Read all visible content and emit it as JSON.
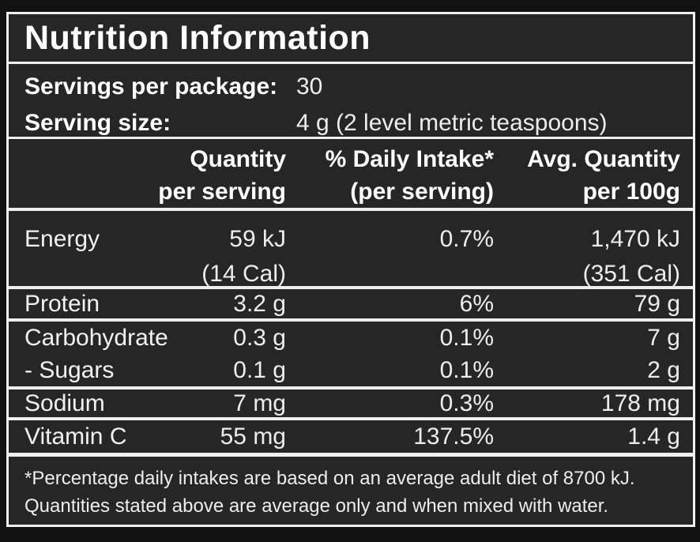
{
  "label": {
    "title": "Nutrition Information",
    "serving_info": {
      "servings_per_package_label": "Servings per package:",
      "servings_per_package_value": "30",
      "serving_size_label": "Serving size:",
      "serving_size_value": "4 g (2 level metric teaspoons)"
    },
    "columns": {
      "quantity_line1": "Quantity",
      "quantity_line2": "per serving",
      "daily_intake_line1": "% Daily Intake*",
      "daily_intake_line2": "(per serving)",
      "avg_line1": "Avg. Quantity",
      "avg_line2": "per 100g"
    },
    "rows": [
      {
        "name": "Energy",
        "qty": "59 kJ",
        "qty_alt": "(14 Cal)",
        "daily_intake": "0.7%",
        "avg": "1,470 kJ",
        "avg_alt": "(351 Cal)"
      },
      {
        "name": "Protein",
        "qty": "3.2 g",
        "daily_intake": "6%",
        "avg": "79 g"
      },
      {
        "name": "Carbohydrate",
        "qty": "0.3 g",
        "daily_intake": "0.1%",
        "avg": "7 g"
      },
      {
        "name": "- Sugars",
        "qty": "0.1 g",
        "daily_intake": "0.1%",
        "avg": "2 g"
      },
      {
        "name": "Sodium",
        "qty": "7 mg",
        "daily_intake": "0.3%",
        "avg": "178 mg"
      },
      {
        "name": "Vitamin C",
        "qty": "55 mg",
        "daily_intake": "137.5%",
        "avg": "1.4 g"
      }
    ],
    "footnote_line1": "*Percentage daily intakes are based on an average adult diet of 8700 kJ.",
    "footnote_line2": "Quantities stated above are average only and when mixed with water.",
    "colors": {
      "page_background": "#121212",
      "panel_background": "#262626",
      "rule_lines": "#efefef",
      "text": "#f5f5f5"
    }
  }
}
